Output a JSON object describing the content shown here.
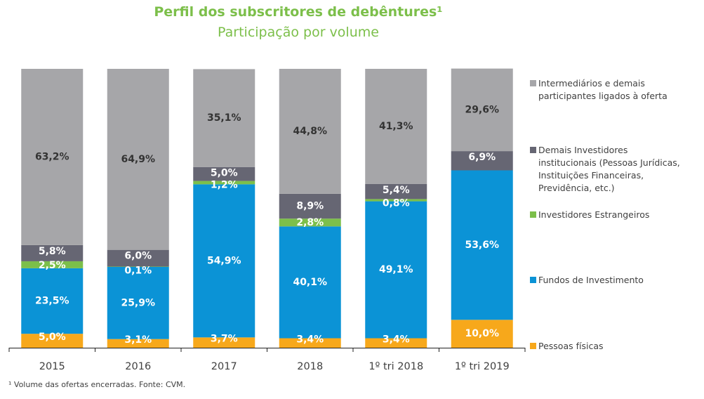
{
  "header": {
    "title": "Perfil dos subscritores de debêntures¹",
    "subtitle": "Participação por volume"
  },
  "footnote": "¹ Volume das ofertas encerradas. Fonte: CVM.",
  "chart_data": {
    "type": "bar",
    "stacked": true,
    "title": "Perfil dos subscritores de debêntures¹",
    "subtitle": "Participação por volume",
    "xlabel": "",
    "ylabel": "",
    "ylim": [
      0,
      100
    ],
    "grid": false,
    "legend_position": "right",
    "categories": [
      "2015",
      "2016",
      "2017",
      "2018",
      "1º tri 2018",
      "1º tri 2019"
    ],
    "series": [
      {
        "name": "Pessoas físicas",
        "color": "#f7a81b",
        "label_color": "#ffffff",
        "values": [
          5.0,
          3.1,
          3.7,
          3.4,
          3.4,
          10.0
        ],
        "labels": [
          "5,0%",
          "3,1%",
          "3,7%",
          "3,4%",
          "3,4%",
          "10,0%"
        ]
      },
      {
        "name": "Fundos de Investimento",
        "color": "#0b93d6",
        "label_color": "#ffffff",
        "values": [
          23.5,
          25.9,
          54.9,
          40.1,
          49.1,
          53.6
        ],
        "labels": [
          "23,5%",
          "25,9%",
          "54,9%",
          "40,1%",
          "49,1%",
          "53,6%"
        ]
      },
      {
        "name": "Investidores Estrangeiros",
        "color": "#7cbf4a",
        "label_color": "#ffffff",
        "values": [
          2.5,
          0.1,
          1.2,
          2.8,
          0.8,
          0.0
        ],
        "labels": [
          "2,5%",
          "0,1%",
          "1,2%",
          "2,8%",
          "0,8%",
          ""
        ]
      },
      {
        "name": "Demais Investidores institucionais (Pessoas Jurídicas, Instituições Financeiras, Previdência, etc.)",
        "color": "#666673",
        "label_color": "#ffffff",
        "values": [
          5.8,
          6.0,
          5.0,
          8.9,
          5.4,
          6.9
        ],
        "labels": [
          "5,8%",
          "6,0%",
          "5,0%",
          "8,9%",
          "5,4%",
          "6,9%"
        ]
      },
      {
        "name": "Intermediários e demais participantes ligados à oferta",
        "color": "#a6a6a9",
        "label_color": "#333333",
        "values": [
          63.2,
          64.9,
          35.1,
          44.8,
          41.3,
          29.6
        ],
        "labels": [
          "63,2%",
          "64,9%",
          "35,1%",
          "44,8%",
          "41,3%",
          "29,6%"
        ]
      }
    ]
  },
  "legend": [
    {
      "lines": [
        "Intermediários e demais",
        "participantes ligados à oferta"
      ],
      "color": "#a6a6a9"
    },
    {
      "lines": [
        "Demais Investidores",
        "institucionais (Pessoas Jurídicas,",
        "Instituições Financeiras,",
        "Previdência, etc.)"
      ],
      "color": "#666673"
    },
    {
      "lines": [
        "Investidores Estrangeiros"
      ],
      "color": "#7cbf4a"
    },
    {
      "lines": [
        "Fundos de Investimento"
      ],
      "color": "#0b93d6"
    },
    {
      "lines": [
        "Pessoas físicas"
      ],
      "color": "#f7a81b"
    }
  ]
}
